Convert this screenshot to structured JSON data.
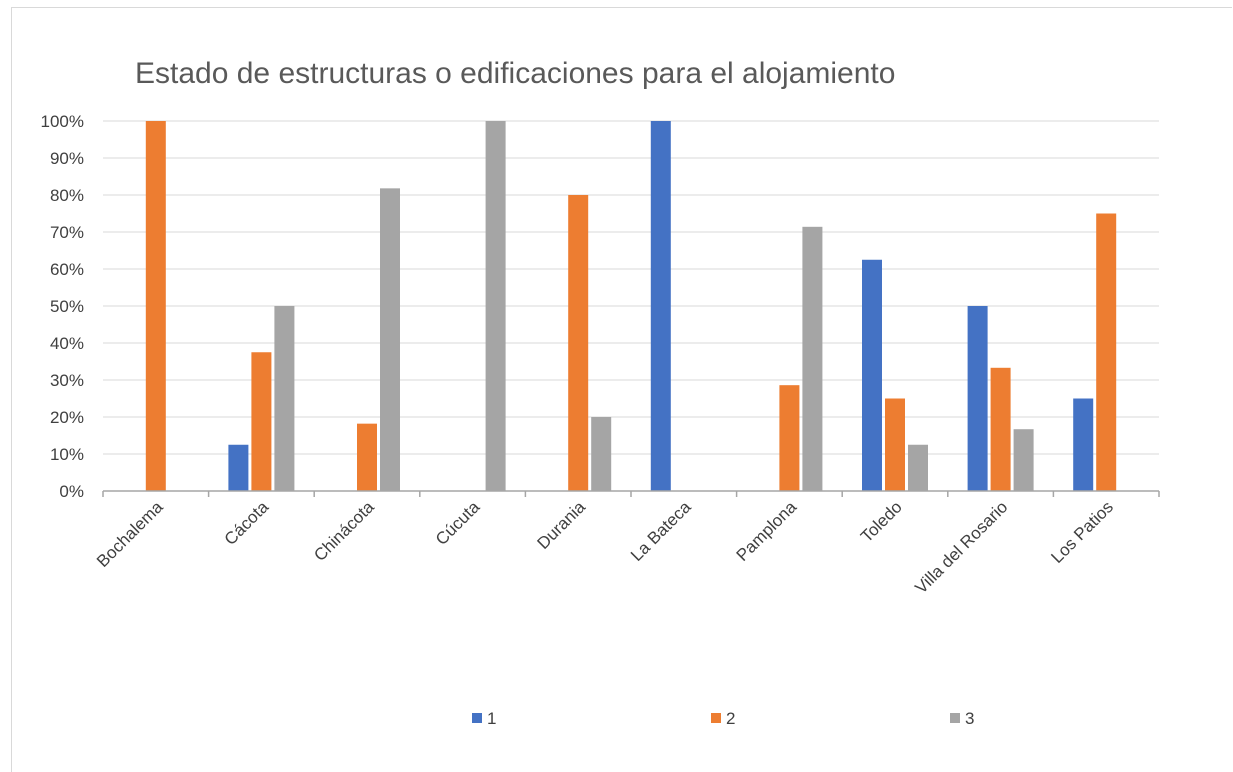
{
  "chart_data": {
    "type": "bar",
    "title": "Estado de estructuras o edificaciones para el alojamiento",
    "categories": [
      "Bochalema",
      "Cácota",
      "Chinácota",
      "Cúcuta",
      "Durania",
      "La Bateca",
      "Pamplona",
      "Toledo",
      "Villa del Rosario",
      "Los Patios"
    ],
    "series": [
      {
        "name": "1",
        "color": "#4472c4",
        "values": [
          0,
          0.125,
          0,
          0,
          0,
          1.0,
          0,
          0.625,
          0.5,
          0.25
        ]
      },
      {
        "name": "2",
        "color": "#ed7d31",
        "values": [
          1.0,
          0.375,
          0.182,
          0,
          0.8,
          0,
          0.286,
          0.25,
          0.333,
          0.75
        ]
      },
      {
        "name": "3",
        "color": "#a5a5a5",
        "values": [
          0,
          0.5,
          0.818,
          1.0,
          0.2,
          0,
          0.714,
          0.125,
          0.167,
          0
        ]
      }
    ],
    "yticks": [
      "0%",
      "10%",
      "20%",
      "30%",
      "40%",
      "50%",
      "60%",
      "70%",
      "80%",
      "90%",
      "100%"
    ],
    "ylim": [
      0,
      1
    ],
    "grid": true,
    "legend_position": "bottom"
  }
}
